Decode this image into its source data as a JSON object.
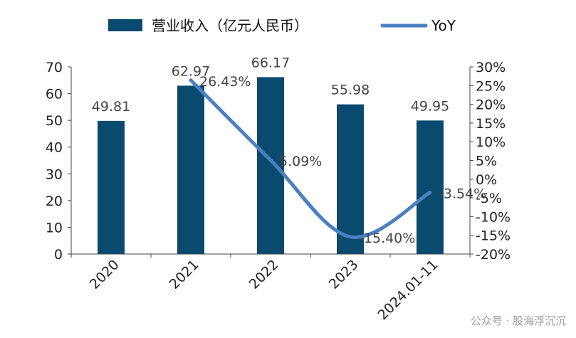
{
  "chart_data": {
    "type": "bar",
    "categories": [
      "2020",
      "2021",
      "2022",
      "2023",
      "2024.01-11"
    ],
    "series": [
      {
        "name": "营业收入（亿元人民币）",
        "type": "bar",
        "axis": "left",
        "values": [
          49.81,
          62.97,
          66.17,
          55.98,
          49.95
        ],
        "labels": [
          "49.81",
          "62.97",
          "66.17",
          "55.98",
          "49.95"
        ]
      },
      {
        "name": "YoY",
        "type": "line",
        "axis": "right",
        "values": [
          null,
          26.43,
          5.09,
          -15.4,
          -3.54
        ],
        "labels": [
          "",
          "26.43%",
          "5.09%",
          "-15.40%",
          "-3.54%"
        ]
      }
    ],
    "y_left": {
      "min": 0,
      "max": 70,
      "step": 10,
      "ticks": [
        "0",
        "10",
        "20",
        "30",
        "40",
        "50",
        "60",
        "70"
      ]
    },
    "y_right": {
      "min": -20,
      "max": 30,
      "step": 5,
      "ticks": [
        "-20%",
        "-15%",
        "-10%",
        "-5%",
        "0%",
        "5%",
        "10%",
        "15%",
        "20%",
        "25%",
        "30%"
      ]
    },
    "legend_position": "top",
    "grid": false,
    "colors": {
      "bar": "#0b4a6f",
      "line": "#4b80c0"
    }
  },
  "watermark": "公众号 · 股海浮沉沉"
}
